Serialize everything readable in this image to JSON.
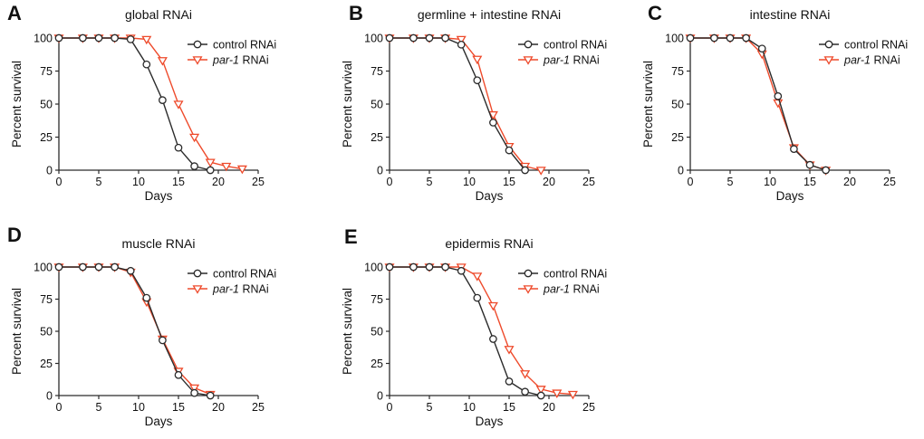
{
  "figure": {
    "background": "#ffffff",
    "text_color": "#111111",
    "axis_color": "#2b2b2b"
  },
  "chart_data": [
    {
      "panel_label": "A",
      "type": "line",
      "title": "global RNAi",
      "xlabel": "Days",
      "ylabel": "Percent survival",
      "xlim": [
        0,
        25
      ],
      "ylim": [
        0,
        100
      ],
      "xticks": [
        0,
        5,
        10,
        15,
        20,
        25
      ],
      "yticks": [
        0,
        25,
        50,
        75,
        100
      ],
      "grid": false,
      "legend_position": "upper-right-inside",
      "series": [
        {
          "name": "control RNAi",
          "label_parts": [
            {
              "text": "control RNAi",
              "italic": false
            }
          ],
          "color": "#2b2b2b",
          "marker": "circle-open",
          "x": [
            0,
            3,
            5,
            7,
            9,
            11,
            13,
            15,
            17,
            19
          ],
          "y": [
            100,
            100,
            100,
            100,
            99,
            80,
            53,
            17,
            3,
            0
          ]
        },
        {
          "name": "par-1 RNAi",
          "label_parts": [
            {
              "text": "par-1",
              "italic": true
            },
            {
              "text": " RNAi",
              "italic": false
            }
          ],
          "color": "#ee4a2b",
          "marker": "triangle-down-open",
          "x": [
            0,
            3,
            5,
            7,
            9,
            11,
            13,
            15,
            17,
            19,
            21,
            23
          ],
          "y": [
            100,
            100,
            100,
            100,
            100,
            99,
            83,
            50,
            25,
            6,
            3,
            1
          ]
        }
      ]
    },
    {
      "panel_label": "B",
      "type": "line",
      "title": "germline + intestine RNAi",
      "xlabel": "Days",
      "ylabel": "Percent survival",
      "xlim": [
        0,
        25
      ],
      "ylim": [
        0,
        100
      ],
      "xticks": [
        0,
        5,
        10,
        15,
        20,
        25
      ],
      "yticks": [
        0,
        25,
        50,
        75,
        100
      ],
      "grid": false,
      "legend_position": "upper-right-inside",
      "series": [
        {
          "name": "control RNAi",
          "label_parts": [
            {
              "text": "control RNAi",
              "italic": false
            }
          ],
          "color": "#2b2b2b",
          "marker": "circle-open",
          "x": [
            0,
            3,
            5,
            7,
            9,
            11,
            13,
            15,
            17
          ],
          "y": [
            100,
            100,
            100,
            100,
            95,
            68,
            36,
            15,
            0
          ]
        },
        {
          "name": "par-1 RNAi",
          "label_parts": [
            {
              "text": "par-1",
              "italic": true
            },
            {
              "text": " RNAi",
              "italic": false
            }
          ],
          "color": "#ee4a2b",
          "marker": "triangle-down-open",
          "x": [
            0,
            3,
            5,
            7,
            9,
            11,
            13,
            15,
            17,
            19
          ],
          "y": [
            100,
            100,
            100,
            100,
            99,
            84,
            42,
            18,
            3,
            0
          ]
        }
      ]
    },
    {
      "panel_label": "C",
      "type": "line",
      "title": "intestine RNAi",
      "xlabel": "Days",
      "ylabel": "Percent survival",
      "xlim": [
        0,
        25
      ],
      "ylim": [
        0,
        100
      ],
      "xticks": [
        0,
        5,
        10,
        15,
        20,
        25
      ],
      "yticks": [
        0,
        25,
        50,
        75,
        100
      ],
      "grid": false,
      "legend_position": "upper-right-inside",
      "series": [
        {
          "name": "control RNAi",
          "label_parts": [
            {
              "text": "control RNAi",
              "italic": false
            }
          ],
          "color": "#2b2b2b",
          "marker": "circle-open",
          "x": [
            0,
            3,
            5,
            7,
            9,
            11,
            13,
            15,
            17
          ],
          "y": [
            100,
            100,
            100,
            100,
            92,
            56,
            16,
            4,
            0
          ]
        },
        {
          "name": "par-1 RNAi",
          "label_parts": [
            {
              "text": "par-1",
              "italic": true
            },
            {
              "text": " RNAi",
              "italic": false
            }
          ],
          "color": "#ee4a2b",
          "marker": "triangle-down-open",
          "x": [
            0,
            3,
            5,
            7,
            9,
            11,
            13,
            15,
            17
          ],
          "y": [
            100,
            100,
            100,
            100,
            88,
            51,
            17,
            4,
            0
          ]
        }
      ]
    },
    {
      "panel_label": "D",
      "type": "line",
      "title": "muscle RNAi",
      "xlabel": "Days",
      "ylabel": "Percent survival",
      "xlim": [
        0,
        25
      ],
      "ylim": [
        0,
        100
      ],
      "xticks": [
        0,
        5,
        10,
        15,
        20,
        25
      ],
      "yticks": [
        0,
        25,
        50,
        75,
        100
      ],
      "grid": false,
      "legend_position": "upper-right-inside",
      "series": [
        {
          "name": "control RNAi",
          "label_parts": [
            {
              "text": "control RNAi",
              "italic": false
            }
          ],
          "color": "#2b2b2b",
          "marker": "circle-open",
          "x": [
            0,
            3,
            5,
            7,
            9,
            11,
            13,
            15,
            17,
            19
          ],
          "y": [
            100,
            100,
            100,
            100,
            97,
            76,
            43,
            16,
            2,
            0
          ]
        },
        {
          "name": "par-1 RNAi",
          "label_parts": [
            {
              "text": "par-1",
              "italic": true
            },
            {
              "text": " RNAi",
              "italic": false
            }
          ],
          "color": "#ee4a2b",
          "marker": "triangle-down-open",
          "x": [
            0,
            3,
            5,
            7,
            9,
            11,
            13,
            15,
            17,
            19
          ],
          "y": [
            100,
            100,
            100,
            100,
            96,
            73,
            44,
            19,
            6,
            1
          ]
        }
      ]
    },
    {
      "panel_label": "E",
      "type": "line",
      "title": "epidermis RNAi",
      "xlabel": "Days",
      "ylabel": "Percent survival",
      "xlim": [
        0,
        25
      ],
      "ylim": [
        0,
        100
      ],
      "xticks": [
        0,
        5,
        10,
        15,
        20,
        25
      ],
      "yticks": [
        0,
        25,
        50,
        75,
        100
      ],
      "grid": false,
      "legend_position": "upper-right-inside",
      "series": [
        {
          "name": "control RNAi",
          "label_parts": [
            {
              "text": "control RNAi",
              "italic": false
            }
          ],
          "color": "#2b2b2b",
          "marker": "circle-open",
          "x": [
            0,
            3,
            5,
            7,
            9,
            11,
            13,
            15,
            17,
            19
          ],
          "y": [
            100,
            100,
            100,
            100,
            97,
            76,
            44,
            11,
            3,
            0
          ]
        },
        {
          "name": "par-1 RNAi",
          "label_parts": [
            {
              "text": "par-1",
              "italic": true
            },
            {
              "text": " RNAi",
              "italic": false
            }
          ],
          "color": "#ee4a2b",
          "marker": "triangle-down-open",
          "x": [
            0,
            3,
            5,
            7,
            9,
            11,
            13,
            15,
            17,
            19,
            21,
            23
          ],
          "y": [
            100,
            100,
            100,
            100,
            100,
            93,
            70,
            36,
            17,
            5,
            2,
            1
          ]
        }
      ]
    }
  ]
}
